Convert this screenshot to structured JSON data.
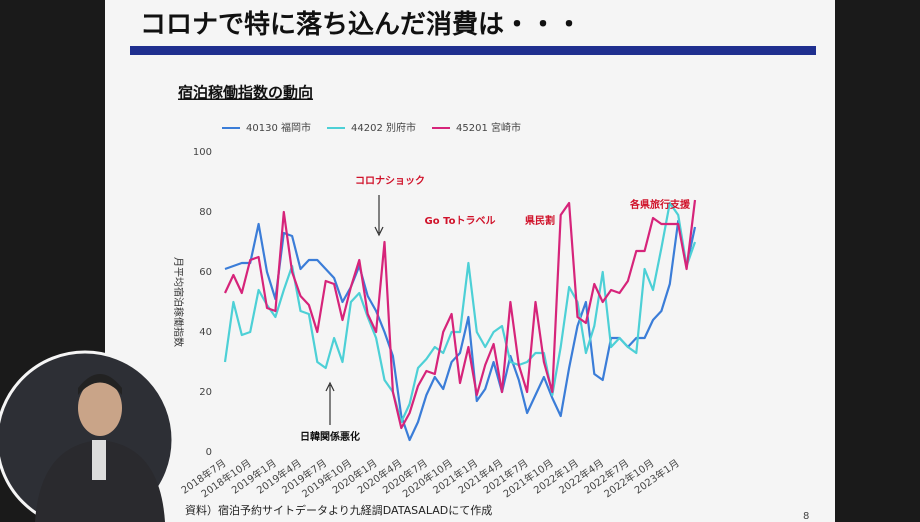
{
  "slide": {
    "title": "コロナで特に落ち込んだ消費は・・・",
    "subtitle": "宿泊稼働指数の動向",
    "footnote": "資料）宿泊予約サイトデータより九経調DATASALADにて作成",
    "page": "8"
  },
  "chart_data": {
    "type": "line",
    "y_label": "月平均宿泊稼働指数",
    "categories": [
      "2018年7月",
      null,
      null,
      "2018年10月",
      null,
      null,
      "2019年1月",
      null,
      null,
      "2019年4月",
      null,
      null,
      "2019年7月",
      null,
      null,
      "2019年10月",
      null,
      null,
      "2020年1月",
      null,
      null,
      "2020年4月",
      null,
      null,
      "2020年7月",
      null,
      null,
      "2020年10月",
      null,
      null,
      "2021年1月",
      null,
      null,
      "2021年4月",
      null,
      null,
      "2021年7月",
      null,
      null,
      "2021年10月",
      null,
      null,
      "2022年1月",
      null,
      null,
      "2022年4月",
      null,
      null,
      "2022年7月",
      null,
      null,
      "2022年10月",
      null,
      null,
      "2023年1月",
      null,
      null
    ],
    "series": [
      {
        "name": "40130 福岡市",
        "color": "#3b7dd8",
        "values": [
          61,
          62,
          63,
          63,
          76,
          60,
          51,
          73,
          72,
          61,
          64,
          64,
          61,
          58,
          50,
          55,
          62,
          52,
          47,
          40,
          32,
          12,
          4,
          10,
          19,
          25,
          21,
          30,
          33,
          45,
          17,
          21,
          30,
          20,
          32,
          24,
          13,
          19,
          25,
          18,
          12,
          28,
          42,
          50,
          26,
          24,
          38,
          38,
          35,
          38,
          38,
          44,
          47,
          56,
          77,
          62,
          75
        ]
      },
      {
        "name": "44202 別府市",
        "color": "#4dd0d6",
        "values": [
          30,
          50,
          39,
          40,
          54,
          49,
          45,
          54,
          62,
          47,
          46,
          30,
          28,
          38,
          30,
          50,
          53,
          45,
          38,
          24,
          20,
          10,
          16,
          28,
          31,
          35,
          33,
          40,
          40,
          63,
          40,
          35,
          40,
          42,
          30,
          29,
          30,
          33,
          33,
          19,
          35,
          55,
          50,
          33,
          42,
          60,
          35,
          38,
          35,
          33,
          61,
          54,
          68,
          83,
          79,
          62,
          70
        ]
      },
      {
        "name": "45201 宮崎市",
        "color": "#d6247a",
        "values": [
          53,
          59,
          53,
          64,
          65,
          48,
          47,
          80,
          60,
          52,
          49,
          40,
          57,
          56,
          44,
          55,
          64,
          46,
          40,
          70,
          20,
          8,
          13,
          22,
          27,
          26,
          40,
          46,
          23,
          35,
          19,
          29,
          36,
          20,
          50,
          29,
          20,
          50,
          30,
          20,
          79,
          83,
          45,
          43,
          56,
          50,
          54,
          53,
          57,
          67,
          67,
          78,
          76,
          76,
          76,
          61,
          84
        ]
      }
    ],
    "ylim": [
      0,
      100
    ],
    "yticks": [
      0,
      20,
      40,
      60,
      80,
      100
    ],
    "grid": false,
    "legend": "top",
    "annotations": [
      "コロナショック",
      "Go Toトラベル",
      "県民割",
      "各県旅行支援",
      "日韓関係悪化"
    ]
  }
}
